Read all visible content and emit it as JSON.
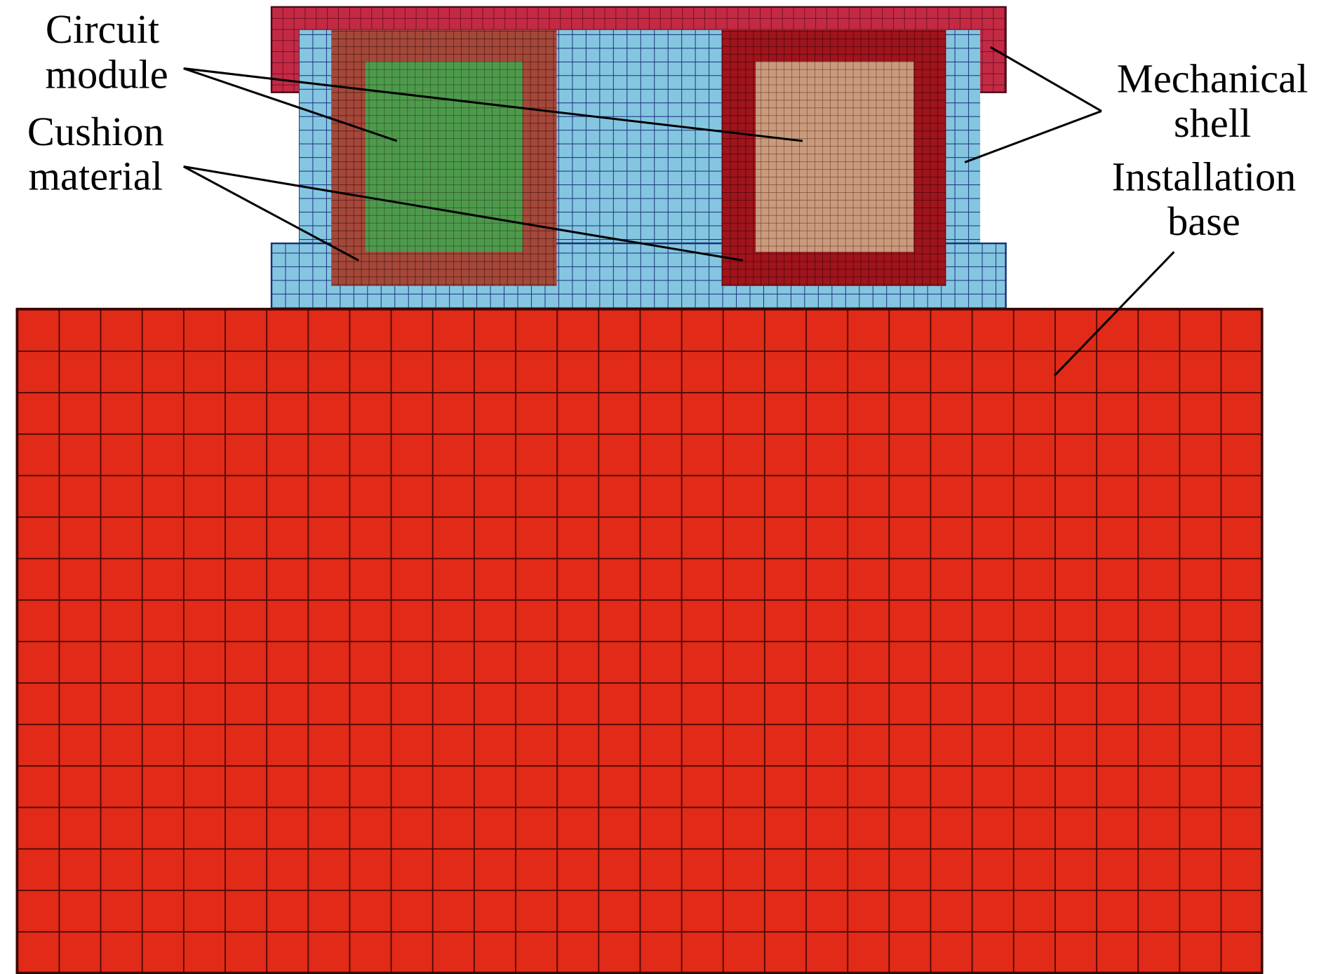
{
  "labels": [
    {
      "lines": [
        "Circuit",
        "module"
      ]
    },
    {
      "lines": [
        "Cushion",
        "material"
      ]
    },
    {
      "lines": [
        "Mechanical",
        "shell"
      ]
    },
    {
      "lines": [
        "Installation",
        "base"
      ]
    }
  ]
}
